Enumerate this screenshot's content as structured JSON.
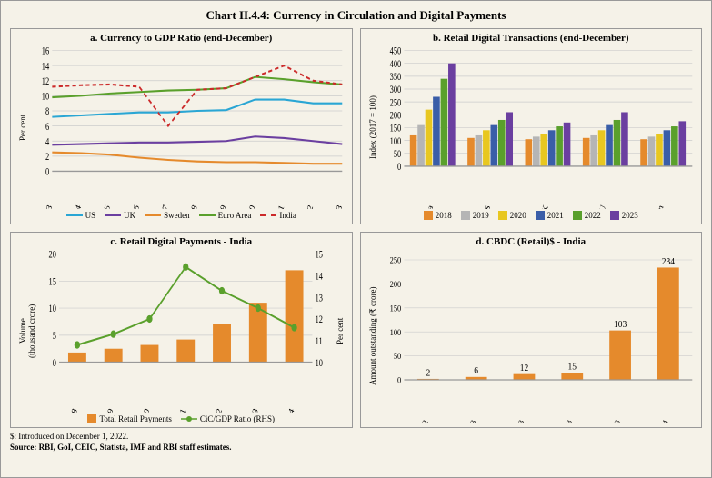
{
  "main_title": "Chart II.4.4: Currency in Circulation and Digital Payments",
  "panel_a": {
    "title": "a. Currency to GDP Ratio (end-December)",
    "ylabel": "Per cent",
    "ylim": [
      0,
      16
    ],
    "ytick_step": 2,
    "x_categories": [
      "2013",
      "2014",
      "2015",
      "2016",
      "2017",
      "2018",
      "2019",
      "2020",
      "2021",
      "2022",
      "2023"
    ],
    "series": [
      {
        "name": "US",
        "color": "#2aa6d4",
        "dash": "",
        "values": [
          7.2,
          7.4,
          7.6,
          7.8,
          7.8,
          8.0,
          8.1,
          9.5,
          9.5,
          9.0,
          9.0
        ]
      },
      {
        "name": "UK",
        "color": "#6b3fa0",
        "dash": "",
        "values": [
          3.5,
          3.6,
          3.7,
          3.8,
          3.8,
          3.9,
          4.0,
          4.6,
          4.4,
          4.0,
          3.6
        ]
      },
      {
        "name": "Sweden",
        "color": "#e58a2c",
        "dash": "",
        "values": [
          2.5,
          2.4,
          2.2,
          1.8,
          1.5,
          1.3,
          1.2,
          1.2,
          1.1,
          1.0,
          1.0
        ]
      },
      {
        "name": "Euro Area",
        "color": "#5aa02c",
        "dash": "",
        "values": [
          9.8,
          10.0,
          10.3,
          10.5,
          10.7,
          10.8,
          11.0,
          12.5,
          12.2,
          11.8,
          11.5
        ]
      },
      {
        "name": "India",
        "color": "#cc2a2a",
        "dash": "4,3",
        "values": [
          11.2,
          11.4,
          11.5,
          11.2,
          6.0,
          10.8,
          11.0,
          12.5,
          14.0,
          12.0,
          11.5
        ]
      }
    ]
  },
  "panel_b": {
    "title": "b. Retail Digital Transactions (end-December)",
    "ylabel": "Index (2017 = 100)",
    "ylim": [
      0,
      450
    ],
    "ytick_step": 50,
    "groups": [
      "India",
      "US",
      "UK",
      "EU",
      "Sweden"
    ],
    "years": [
      "2018",
      "2019",
      "2020",
      "2021",
      "2022",
      "2023"
    ],
    "colors": [
      "#e58a2c",
      "#b5b5b5",
      "#e8c720",
      "#3a5ea8",
      "#5aa02c",
      "#6b3fa0"
    ],
    "values": {
      "India": [
        120,
        160,
        220,
        270,
        340,
        400
      ],
      "US": [
        110,
        120,
        140,
        160,
        180,
        210
      ],
      "UK": [
        105,
        115,
        125,
        140,
        155,
        170
      ],
      "EU": [
        110,
        120,
        140,
        160,
        180,
        210
      ],
      "Sweden": [
        105,
        115,
        125,
        140,
        155,
        175
      ]
    }
  },
  "panel_c": {
    "title": "c. Retail Digital Payments - India",
    "ylabel": "Volume\n(thousand crore)",
    "ylabel_right": "Per cent",
    "ylim_left": [
      0,
      20
    ],
    "ytick_left_step": 5,
    "ylim_right": [
      10,
      15
    ],
    "ytick_right_step": 1,
    "x_categories": [
      "2017-18",
      "2018-19",
      "2019-20",
      "2020-21",
      "2021-22",
      "2022-23",
      "2023-24"
    ],
    "bars": {
      "name": "Total Retail Payments",
      "color": "#e58a2c",
      "values": [
        1.8,
        2.5,
        3.2,
        4.2,
        7.0,
        11.0,
        17.0
      ]
    },
    "line": {
      "name": "CiC/GDP Ratio (RHS)",
      "color": "#5aa02c",
      "values": [
        10.8,
        11.3,
        12.0,
        14.4,
        13.3,
        12.5,
        11.6
      ]
    }
  },
  "panel_d": {
    "title": "d. CBDC (Retail)$ - India",
    "ylabel": "Amount outstanding (₹ crore)",
    "ylim": [
      0,
      250
    ],
    "ytick_step": 50,
    "x_categories": [
      "Dec-22",
      "Mar-23",
      "Jun-23",
      "Sep-23",
      "Dec-23",
      "Mar-24"
    ],
    "values": [
      2,
      6,
      12,
      15,
      103,
      234
    ],
    "color": "#e58a2c"
  },
  "footnote1": "$: Introduced on December 1, 2022.",
  "footnote2": "Source: RBI, GoI, CEIC, Statista, IMF and RBI staff estimates."
}
